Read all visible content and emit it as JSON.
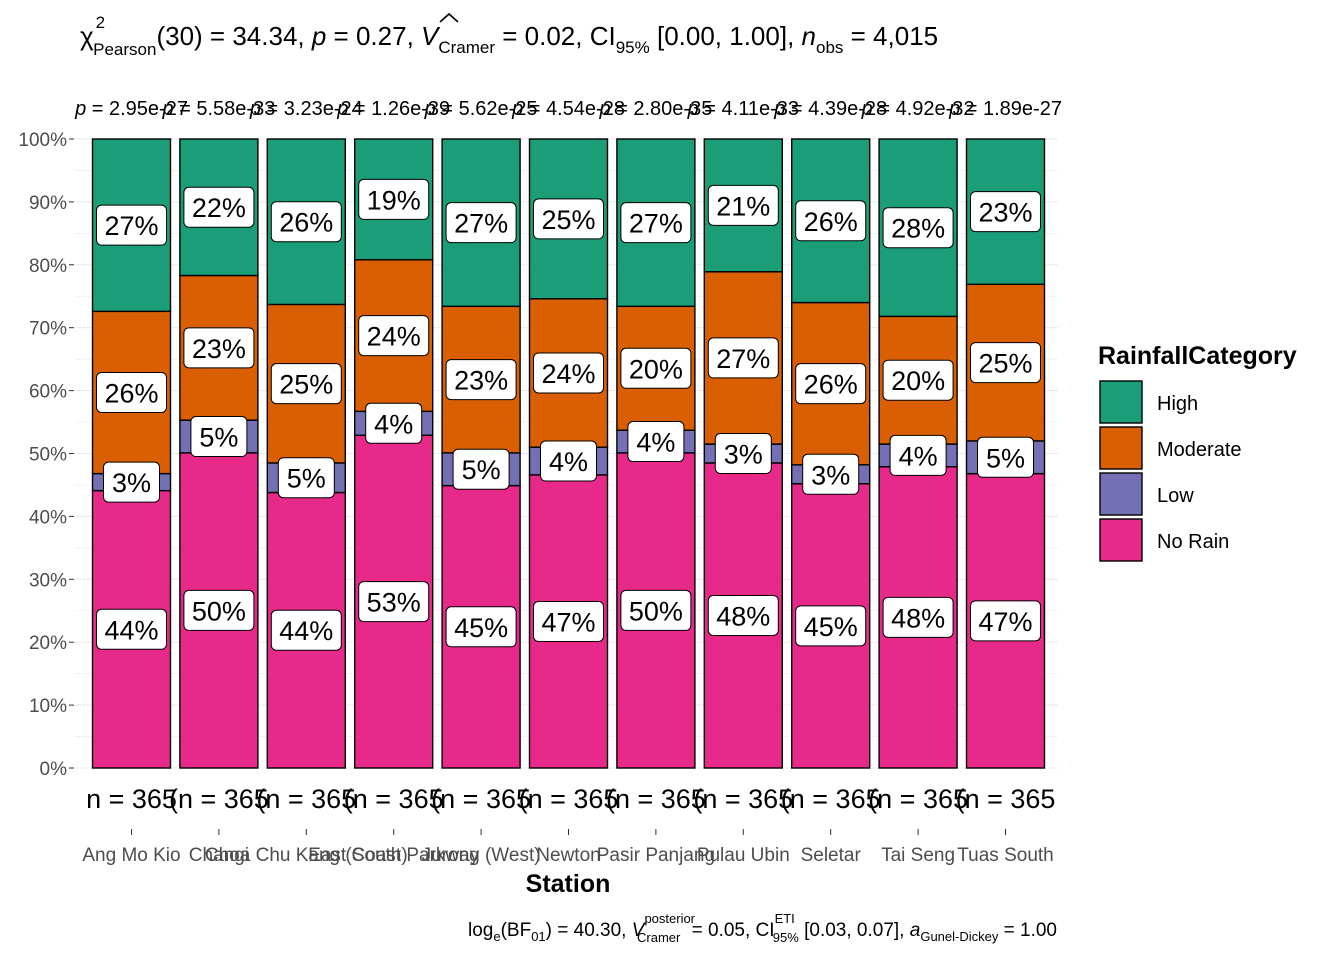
{
  "chart_data": {
    "type": "bar",
    "stacked": "percent",
    "subtitle": {
      "stat_name": "χ",
      "stat_sup": "2",
      "stat_sub": "Pearson",
      "df": "(30)",
      "stat_value": " = 34.34, ",
      "p_symbol": "p",
      "p_value": " = 0.27, ",
      "effect_symbol": "V",
      "effect_sub": "Cramer",
      "effect_value": " = 0.02, CI",
      "ci_sub": "95%",
      "ci_value": " [0.00, 1.00], ",
      "n_symbol": "n",
      "n_sub": "obs",
      "n_value": " = 4,015"
    },
    "caption": {
      "log_text": "log",
      "log_sub": "e",
      "bf_text": "(BF",
      "bf_sub": "01",
      "bf_value": ") = 40.30, ",
      "v_symbol": "V",
      "v_sup": "posterior",
      "v_sub": "Cramer",
      "v_value": " = 0.05, CI",
      "ci_sup": "ETI",
      "ci_sub": "95%",
      "ci_value": " [0.03, 0.07], ",
      "a_symbol": "a",
      "a_sub": "Gunel-Dickey",
      "a_value": " = 1.00"
    },
    "xlabel": "Station",
    "ylabel": "",
    "ylim": [
      0,
      100
    ],
    "y_ticks": [
      "0%",
      "10%",
      "20%",
      "30%",
      "40%",
      "50%",
      "60%",
      "70%",
      "80%",
      "90%",
      "100%"
    ],
    "legend": {
      "title": "RainfallCategory",
      "position": "right",
      "entries": [
        "High",
        "Moderate",
        "Low",
        "No Rain"
      ]
    },
    "colors": {
      "High": "#1b9e77",
      "Moderate": "#d95f02",
      "Low": "#7570b3",
      "No Rain": "#e7298a"
    },
    "categories": [
      "Ang Mo Kio",
      "Changi",
      "Choa Chu Kang (South)",
      "East Coast Parkway",
      "Jurong (West)",
      "Newton",
      "Pasir Panjang",
      "Pulau Ubin",
      "Seletar",
      "Tai Seng",
      "Tuas South"
    ],
    "series": [
      {
        "name": "No Rain",
        "values": [
          44.1,
          50.1,
          43.8,
          52.9,
          44.9,
          46.6,
          50.1,
          48.5,
          45.2,
          47.9,
          46.8
        ]
      },
      {
        "name": "Low",
        "values": [
          2.7,
          5.2,
          4.7,
          3.8,
          5.2,
          4.4,
          3.6,
          3.0,
          3.0,
          3.6,
          5.2
        ]
      },
      {
        "name": "Moderate",
        "values": [
          25.8,
          23.0,
          25.2,
          24.1,
          23.3,
          23.6,
          19.7,
          27.4,
          25.8,
          20.3,
          24.9
        ]
      },
      {
        "name": "High",
        "values": [
          27.4,
          21.7,
          26.3,
          19.2,
          26.6,
          25.4,
          26.6,
          21.1,
          26.0,
          28.2,
          23.1
        ]
      }
    ],
    "pct_labels": [
      [
        "44%",
        "50%",
        "44%",
        "53%",
        "45%",
        "47%",
        "50%",
        "48%",
        "45%",
        "48%",
        "47%"
      ],
      [
        "3%",
        "5%",
        "5%",
        "4%",
        "5%",
        "4%",
        "4%",
        "3%",
        "3%",
        "4%",
        "5%"
      ],
      [
        "26%",
        "23%",
        "25%",
        "24%",
        "23%",
        "24%",
        "20%",
        "27%",
        "26%",
        "20%",
        "25%"
      ],
      [
        "27%",
        "22%",
        "26%",
        "19%",
        "27%",
        "25%",
        "27%",
        "21%",
        "26%",
        "28%",
        "23%"
      ]
    ],
    "n_labels": [
      "n = 365",
      "(n = 365",
      "(n = 365",
      "(n = 365",
      "(n = 365",
      "(n = 365",
      "(n = 365",
      "(n = 365",
      "(n = 365",
      "(n = 365",
      "(n = 365"
    ],
    "p_labels": [
      "p = 2.95e-27",
      "p = 5.58e-33",
      "p = 3.23e-24",
      "p = 1.26e-39",
      "p = 5.62e-25",
      "p = 4.54e-28",
      "p = 2.80e-35",
      "p = 4.11e-33",
      "p = 4.39e-28",
      "p = 4.92e-32",
      "p = 1.89e-27"
    ]
  }
}
